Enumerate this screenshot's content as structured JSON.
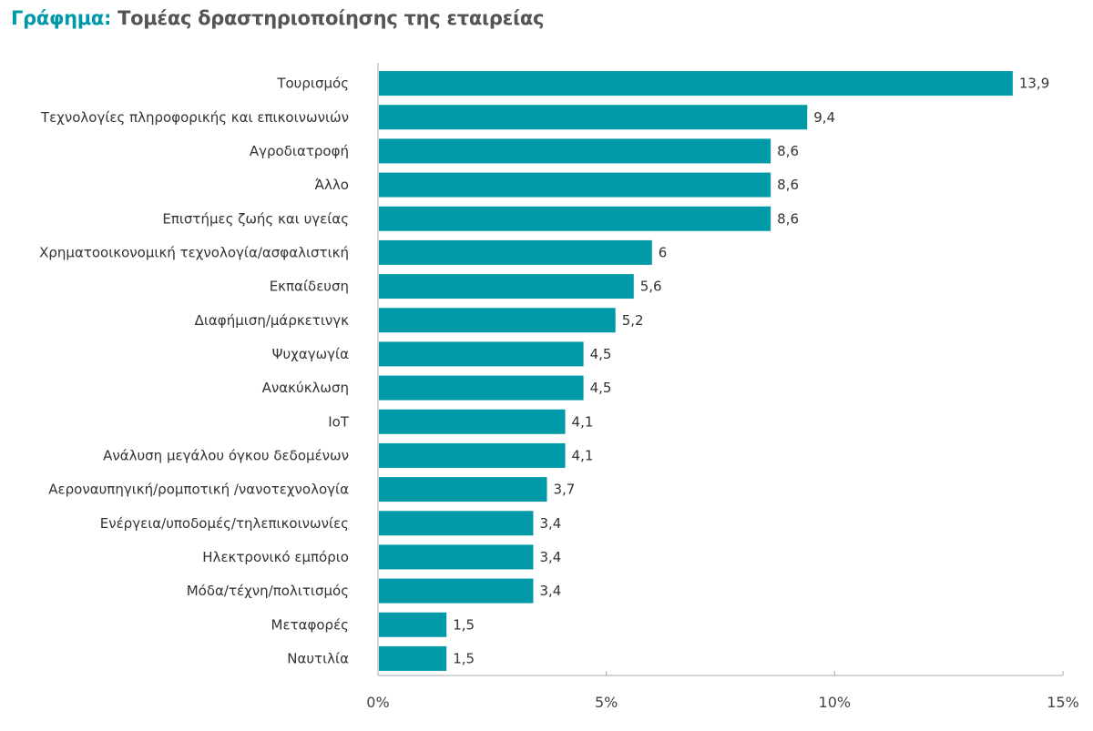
{
  "chart_data": {
    "type": "bar",
    "orientation": "horizontal",
    "title_prefix": "Γράφημα:",
    "title": "Τομέας δραστηριοποίησης της εταιρείας",
    "categories": [
      "Τουρισμός",
      "Τεχνολογίες πληροφορικής και επικοινωνιών",
      "Αγροδιατροφή",
      "Άλλο",
      "Επιστήμες ζωής και υγείας",
      "Χρηματοοικονομική τεχνολογία/ασφαλιστική",
      "Εκπαίδευση",
      "Διαφήμιση/μάρκετινγκ",
      "Ψυχαγωγία",
      "Ανακύκλωση",
      "IoT",
      "Ανάλυση μεγάλου όγκου δεδομένων",
      "Αεροναυπηγική/ρομποτική /νανοτεχνολογία",
      "Ενέργεια/υποδομές/τηλεπικοινωνίες",
      "Ηλεκτρονικό εμπόριο",
      "Μόδα/τέχνη/πολιτισμός",
      "Μεταφορές",
      "Ναυτιλία"
    ],
    "values": [
      13.9,
      9.4,
      8.6,
      8.6,
      8.6,
      6,
      5.6,
      5.2,
      4.5,
      4.5,
      4.1,
      4.1,
      3.7,
      3.4,
      3.4,
      3.4,
      1.5,
      1.5
    ],
    "data_labels": [
      "13,9",
      "9,4",
      "8,6",
      "8,6",
      "8,6",
      "6",
      "5,6",
      "5,2",
      "4,5",
      "4,5",
      "4,1",
      "4,1",
      "3,7",
      "3,4",
      "3,4",
      "3,4",
      "1,5",
      "1,5"
    ],
    "xlim": [
      0,
      15
    ],
    "x_ticks": [
      0,
      5,
      10,
      15
    ],
    "x_tick_labels": [
      "0%",
      "5%",
      "10%",
      "15%"
    ],
    "xlabel": "",
    "ylabel": "",
    "grid": false,
    "colors": {
      "bar": "#0099a8",
      "title_prefix": "#0099a8",
      "title": "#555555"
    }
  }
}
